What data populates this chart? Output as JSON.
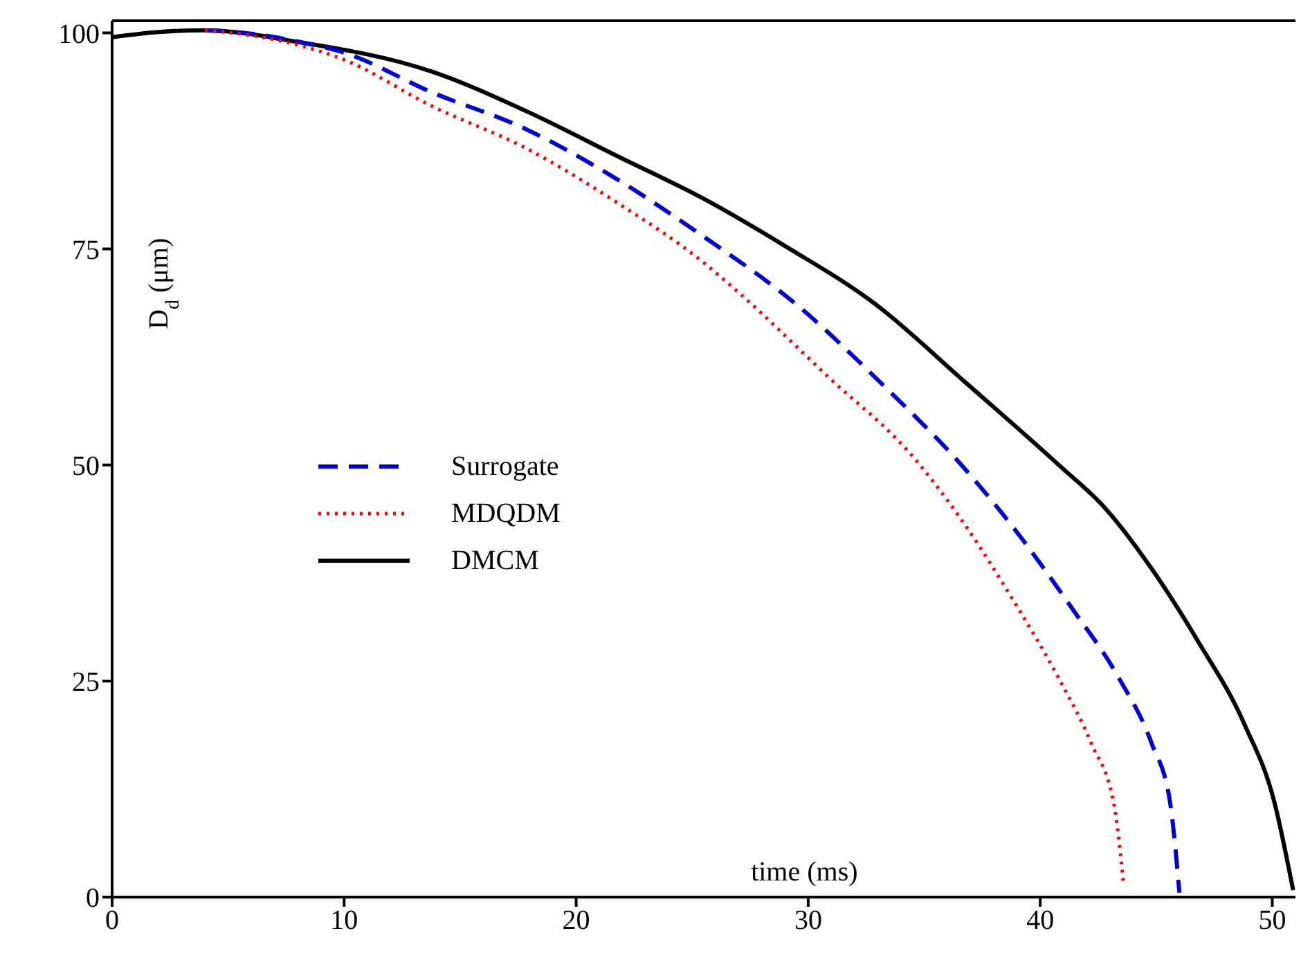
{
  "chart_data": {
    "type": "line",
    "xlabel": "time (ms)",
    "ylabel": "D$_{d}$ (μm)",
    "xlim": [
      0,
      51
    ],
    "ylim": [
      0,
      101.4
    ],
    "xticks": [
      0,
      10,
      20,
      30,
      40,
      50
    ],
    "yticks": [
      0,
      25,
      50,
      75,
      100
    ],
    "grid": false,
    "legend": "center left",
    "marker": "none",
    "series": [
      {
        "name": "Surrogate",
        "color": "#0000cc",
        "line_style": "dashed",
        "x": [
          4,
          6,
          8,
          9.9,
          13.8,
          17.8,
          21.8,
          25.4,
          29.7,
          32.9,
          36.8,
          38.8,
          41.4,
          43.4,
          44.8,
          45.6,
          46.0
        ],
        "values": [
          100.3,
          99.9,
          99.0,
          97.8,
          93.1,
          88.9,
          83.0,
          76.6,
          68.1,
          60.1,
          49.4,
          42.9,
          33.3,
          25.3,
          17.8,
          10.9,
          0.5
        ]
      },
      {
        "name": "MDQDM",
        "color": "#ff0000",
        "line_style": "dotted",
        "x": [
          4,
          6,
          8,
          9.9,
          13.8,
          17.8,
          21.8,
          25.5,
          26.9,
          30.9,
          34.5,
          36.8,
          38.8,
          40.8,
          42.2,
          43.2,
          43.6
        ],
        "values": [
          100.3,
          99.7,
          98.6,
          97.0,
          91.5,
          86.7,
          80.3,
          73.4,
          70.2,
          60.1,
          51.0,
          42.9,
          34.5,
          25.3,
          17.8,
          10.4,
          1.3
        ]
      },
      {
        "name": "DMCM",
        "color": "#000000",
        "line_style": "solid",
        "x": [
          0,
          2,
          4,
          7.9,
          13.8,
          17.8,
          21.8,
          25.5,
          28.9,
          32.9,
          36.8,
          40.8,
          42.8,
          44.8,
          46.8,
          48.8,
          50.1,
          50.9
        ],
        "values": [
          99.5,
          100.1,
          100.3,
          99.0,
          95.5,
          91.0,
          85.7,
          80.8,
          75.5,
          68.6,
          59.5,
          50.0,
          45.0,
          38.0,
          29.6,
          20.0,
          10.9,
          0.8
        ]
      }
    ]
  }
}
